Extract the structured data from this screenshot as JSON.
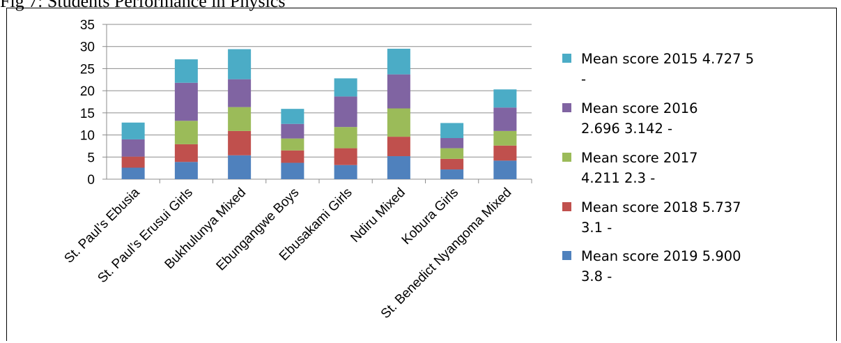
{
  "caption": "Fig 7: Students Performance in Physics",
  "chart_data": {
    "type": "bar",
    "stacked": true,
    "categories": [
      "St. Paul’s Ebusia",
      "St. Paul’s Erusui Girls",
      "Bukhulunya Mixed",
      "Ebungangwe Boys",
      "Ebusakami Girls",
      "Ndiru Mixed",
      "Kobura Girls",
      "St. Benedict Nyangoma Mixed"
    ],
    "series": [
      {
        "name": "Mean score 2019 5.900 3.8 -",
        "legend_lines": [
          "Mean score 2019  5.900",
          "3.8 -"
        ],
        "color": "#4f81bd",
        "values": [
          2.6,
          3.9,
          5.4,
          3.7,
          3.2,
          5.2,
          2.2,
          4.2
        ]
      },
      {
        "name": "Mean score 2018 5.737 3.1 -",
        "legend_lines": [
          "Mean score 2018  5.737",
          "3.1 -"
        ],
        "color": "#c0504d",
        "values": [
          2.5,
          4.0,
          5.5,
          2.8,
          3.8,
          4.4,
          2.4,
          3.4
        ]
      },
      {
        "name": "Mean score 2017 4.211 2.3 -",
        "legend_lines": [
          "Mean score 2017",
          "4.211  2.3 -"
        ],
        "color": "#9bbb59",
        "values": [
          0.0,
          5.3,
          5.4,
          2.7,
          4.8,
          6.4,
          2.4,
          3.3
        ]
      },
      {
        "name": "Mean score 2016 2.696 3.142 -",
        "legend_lines": [
          "Mean score 2016",
          "2.696  3.142 -"
        ],
        "color": "#8064a2",
        "values": [
          3.9,
          8.6,
          6.3,
          3.3,
          6.9,
          7.7,
          2.3,
          5.3
        ]
      },
      {
        "name": "Mean score 2015 4.727 5 -",
        "legend_lines": [
          "Mean score 2015 4.727  5",
          "-"
        ],
        "color": "#4bacc6",
        "values": [
          3.8,
          5.3,
          6.8,
          3.4,
          4.1,
          5.8,
          3.4,
          4.1
        ]
      }
    ],
    "yticks": [
      "0",
      "5",
      "10",
      "15",
      "20",
      "25",
      "30",
      "35"
    ],
    "ylim": [
      0,
      35
    ],
    "grid": true,
    "legend_position": "right"
  }
}
